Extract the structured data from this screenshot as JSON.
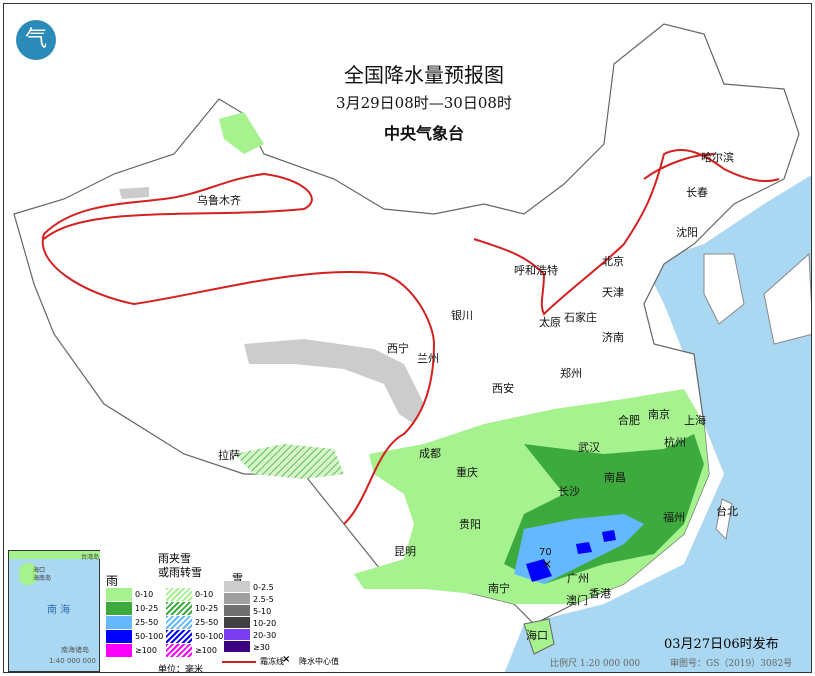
{
  "title": "全国降水量预报图",
  "period": "3月29日08时—30日08时",
  "issuer": "中央气象台",
  "issued": "03月27日06时发布",
  "scale": "比例尺 1:20 000 000",
  "map_number": "审图号：GS（2019）3082号",
  "center_value": "70",
  "cities": [
    "乌鲁木齐",
    "哈尔滨",
    "长春",
    "沈阳",
    "呼和浩特",
    "北京",
    "天津",
    "石家庄",
    "太原",
    "济南",
    "银川",
    "西宁",
    "兰州",
    "西安",
    "郑州",
    "合肥",
    "南京",
    "上海",
    "杭州",
    "武汉",
    "成都",
    "重庆",
    "长沙",
    "南昌",
    "福州",
    "台北",
    "贵阳",
    "昆明",
    "南宁",
    "广州",
    "澳门",
    "香港",
    "海口",
    "拉萨"
  ],
  "inset": {
    "sea": "南 海",
    "islands": "南海诸岛",
    "scale": "1:40 000 000",
    "labels": [
      "海口",
      "海南岛",
      "台湾岛"
    ]
  },
  "legend": {
    "rain": {
      "title": "雨",
      "items": [
        "0-10",
        "10-25",
        "25-50",
        "50-100",
        "≥100"
      ],
      "colors": [
        "#a5f28e",
        "#3daa3d",
        "#63b8ff",
        "#0000fe",
        "#fa00fa"
      ]
    },
    "mixed": {
      "title": "雨夹雪\n或雨转雪",
      "items": [
        "0-10",
        "10-25",
        "25-50",
        "50-100",
        "≥100"
      ]
    },
    "snow": {
      "title": "雪",
      "items": [
        "0-2.5",
        "2.5-5",
        "5-10",
        "10-20",
        "20-30",
        "≥30"
      ],
      "colors": [
        "#cccccc",
        "#a0a0a0",
        "#707070",
        "#404040",
        "#7a3cf0",
        "#3c0082"
      ]
    },
    "unit": "单位：毫米",
    "frost_line": "霜冻线",
    "center_mark": "×",
    "center_label": "降水中心值"
  }
}
